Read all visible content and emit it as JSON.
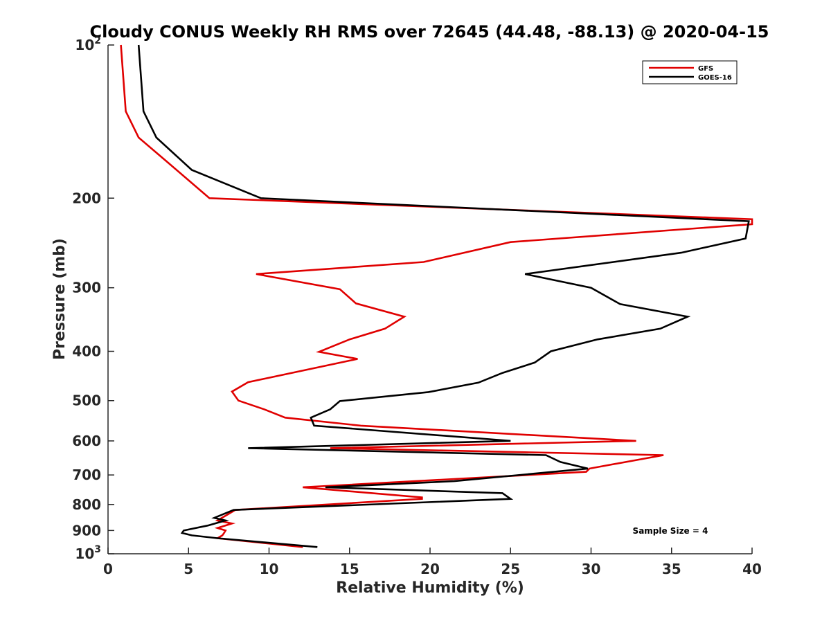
{
  "chart_data": {
    "type": "line",
    "title": "Cloudy CONUS Weekly RH RMS over 72645 (44.48, -88.13) @ 2020-04-15",
    "xlabel": "Relative Humidity (%)",
    "ylabel": "Pressure (mb)",
    "xlim": [
      0,
      40
    ],
    "ylim": [
      100,
      1000
    ],
    "y_scale": "log",
    "y_reversed": true,
    "x_ticks": [
      "0",
      "5",
      "10",
      "15",
      "20",
      "25",
      "30",
      "35",
      "40"
    ],
    "y_ticks": [
      {
        "value": 100,
        "base": "10",
        "exp": "2"
      },
      {
        "value": 200,
        "label": "200"
      },
      {
        "value": 300,
        "label": "300"
      },
      {
        "value": 400,
        "label": "400"
      },
      {
        "value": 500,
        "label": "500"
      },
      {
        "value": 600,
        "label": "600"
      },
      {
        "value": 700,
        "label": "700"
      },
      {
        "value": 800,
        "label": "800"
      },
      {
        "value": 900,
        "label": "900"
      },
      {
        "value": 1000,
        "base": "10",
        "exp": "3"
      }
    ],
    "legend_position": "top-right",
    "grid": false,
    "annotation": "Sample Size = 4",
    "series": [
      {
        "name": "GFS",
        "color": "#e00000",
        "points": [
          [
            0.8,
            100
          ],
          [
            1.1,
            135
          ],
          [
            1.9,
            152
          ],
          [
            3.7,
            170
          ],
          [
            6.3,
            200
          ],
          [
            40,
            220
          ],
          [
            40,
            225
          ],
          [
            25,
            244
          ],
          [
            19.6,
            267
          ],
          [
            9.2,
            282
          ],
          [
            14.4,
            302
          ],
          [
            15.4,
            322
          ],
          [
            18.4,
            342
          ],
          [
            17.2,
            361
          ],
          [
            15,
            379
          ],
          [
            13.1,
            401
          ],
          [
            15.5,
            414
          ],
          [
            8.7,
            460
          ],
          [
            7.7,
            480
          ],
          [
            8.1,
            500
          ],
          [
            9.7,
            520
          ],
          [
            11,
            540
          ],
          [
            15.7,
            560
          ],
          [
            32.8,
            600
          ],
          [
            13.8,
            620
          ],
          [
            34.5,
            640
          ],
          [
            29.9,
            680
          ],
          [
            29.7,
            690
          ],
          [
            12.1,
            740
          ],
          [
            19.5,
            775
          ],
          [
            19.5,
            780
          ],
          [
            7.9,
            820
          ],
          [
            6.8,
            860
          ],
          [
            7.7,
            872
          ],
          [
            6.8,
            890
          ],
          [
            7.3,
            900
          ],
          [
            7.2,
            911
          ],
          [
            7.1,
            920
          ],
          [
            6.8,
            932
          ],
          [
            12.1,
            970
          ]
        ]
      },
      {
        "name": "GOES-16",
        "color": "#000000",
        "points": [
          [
            1.9,
            100
          ],
          [
            2.2,
            135
          ],
          [
            3,
            152
          ],
          [
            5.2,
            176
          ],
          [
            9.5,
            200
          ],
          [
            39.8,
            222
          ],
          [
            39.6,
            240
          ],
          [
            35.6,
            256
          ],
          [
            25.9,
            282
          ],
          [
            30,
            300
          ],
          [
            31.8,
            323
          ],
          [
            36,
            342
          ],
          [
            34.3,
            361
          ],
          [
            30.4,
            379
          ],
          [
            27.5,
            400
          ],
          [
            26.5,
            421
          ],
          [
            24.5,
            441
          ],
          [
            23,
            461
          ],
          [
            19.9,
            481
          ],
          [
            14.4,
            501
          ],
          [
            13.8,
            520
          ],
          [
            12.6,
            540
          ],
          [
            12.8,
            560
          ],
          [
            25,
            600
          ],
          [
            8.7,
            620
          ],
          [
            27.2,
            640
          ],
          [
            28.1,
            660
          ],
          [
            29.8,
            680
          ],
          [
            21.5,
            720
          ],
          [
            13.5,
            740
          ],
          [
            24.5,
            760
          ],
          [
            25,
            780
          ],
          [
            7.8,
            820
          ],
          [
            6.6,
            850
          ],
          [
            7.3,
            860
          ],
          [
            6.2,
            880
          ],
          [
            4.7,
            900
          ],
          [
            4.6,
            910
          ],
          [
            5.2,
            920
          ],
          [
            6.8,
            932
          ],
          [
            13,
            970
          ]
        ]
      }
    ]
  }
}
